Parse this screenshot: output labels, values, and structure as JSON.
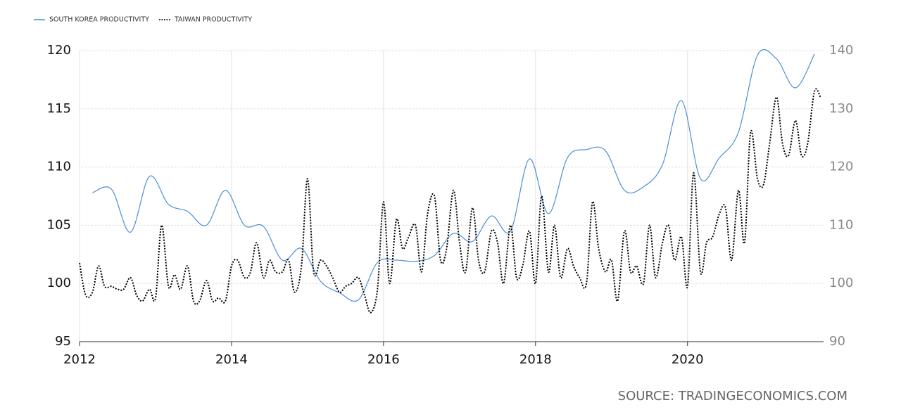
{
  "chart_data": {
    "type": "line",
    "source": "SOURCE: TRADINGECONOMICS.COM",
    "xlim": [
      2012,
      2021.79
    ],
    "xticks": [
      2012,
      2014,
      2016,
      2018,
      2020
    ],
    "ylim": [
      95,
      120
    ],
    "yticks": [
      95,
      100,
      105,
      110,
      115,
      120
    ],
    "y2lim": [
      90,
      140
    ],
    "y2ticks": [
      90,
      100,
      110,
      120,
      130,
      140
    ],
    "grid": true,
    "legend": "top-left",
    "series": [
      {
        "name": "SOUTH KOREA PRODUCTIVITY",
        "color": "#4a8fd6",
        "style": "solid",
        "x": [
          2012.17,
          2012.42,
          2012.67,
          2012.92,
          2013.17,
          2013.42,
          2013.67,
          2013.92,
          2014.17,
          2014.42,
          2014.67,
          2014.92,
          2015.17,
          2015.42,
          2015.67,
          2015.92,
          2016.17,
          2016.42,
          2016.67,
          2016.92,
          2017.17,
          2017.42,
          2017.67,
          2017.92,
          2018.17,
          2018.42,
          2018.67,
          2018.92,
          2019.17,
          2019.42,
          2019.67,
          2019.92,
          2020.17,
          2020.42,
          2020.67,
          2020.92,
          2021.17,
          2021.42,
          2021.67
        ],
        "values": [
          107.8,
          108.1,
          104.4,
          109.2,
          106.8,
          106.2,
          105.0,
          108.0,
          105.0,
          104.9,
          102.0,
          103.0,
          100.2,
          99.2,
          98.6,
          101.8,
          102.0,
          101.9,
          102.4,
          104.3,
          103.6,
          105.8,
          104.5,
          110.7,
          106.0,
          110.8,
          111.5,
          111.4,
          108.0,
          108.3,
          110.2,
          115.7,
          109.0,
          110.8,
          113.0,
          119.6,
          119.3,
          116.8,
          119.7
        ]
      },
      {
        "name": "TAIWAN PRODUCTIVITY",
        "color": "#000000",
        "style": "dotted",
        "axis": "y2",
        "x": [
          2012.0,
          2012.08,
          2012.17,
          2012.25,
          2012.33,
          2012.42,
          2012.5,
          2012.58,
          2012.67,
          2012.75,
          2012.83,
          2012.92,
          2013.0,
          2013.08,
          2013.17,
          2013.25,
          2013.33,
          2013.42,
          2013.5,
          2013.58,
          2013.67,
          2013.75,
          2013.83,
          2013.92,
          2014.0,
          2014.08,
          2014.17,
          2014.25,
          2014.33,
          2014.42,
          2014.5,
          2014.58,
          2014.67,
          2014.75,
          2014.83,
          2014.92,
          2015.0,
          2015.08,
          2015.17,
          2015.25,
          2015.33,
          2015.42,
          2015.5,
          2015.58,
          2015.67,
          2015.75,
          2015.83,
          2015.92,
          2016.0,
          2016.08,
          2016.17,
          2016.25,
          2016.33,
          2016.42,
          2016.5,
          2016.58,
          2016.67,
          2016.75,
          2016.83,
          2016.92,
          2017.0,
          2017.08,
          2017.17,
          2017.25,
          2017.33,
          2017.42,
          2017.5,
          2017.58,
          2017.67,
          2017.75,
          2017.83,
          2017.92,
          2018.0,
          2018.08,
          2018.17,
          2018.25,
          2018.33,
          2018.42,
          2018.5,
          2018.58,
          2018.67,
          2018.75,
          2018.83,
          2018.92,
          2019.0,
          2019.08,
          2019.17,
          2019.25,
          2019.33,
          2019.42,
          2019.5,
          2019.58,
          2019.67,
          2019.75,
          2019.83,
          2019.92,
          2020.0,
          2020.08,
          2020.17,
          2020.25,
          2020.33,
          2020.42,
          2020.5,
          2020.58,
          2020.67,
          2020.75,
          2020.83,
          2020.92,
          2021.0,
          2021.08,
          2021.17,
          2021.25,
          2021.33,
          2021.42,
          2021.5,
          2021.58,
          2021.67,
          2021.75
        ],
        "values": [
          103.5,
          98,
          98.5,
          103,
          99.5,
          99.5,
          99,
          99,
          101,
          98,
          97,
          99,
          97.5,
          110,
          99.5,
          101.5,
          99,
          103,
          97,
          97,
          100.5,
          97,
          97.5,
          97,
          103,
          104,
          101,
          102,
          107,
          101,
          104,
          102,
          102,
          104,
          98.5,
          103,
          118,
          102,
          104,
          103,
          101,
          98.5,
          99.5,
          100,
          101,
          98,
          95,
          99,
          114,
          100,
          111,
          106,
          108,
          110,
          102,
          112,
          115,
          104,
          106,
          116,
          107,
          102,
          113,
          104,
          102,
          109,
          107,
          100,
          110,
          101,
          103,
          109,
          100,
          115,
          102,
          110,
          101,
          106,
          103,
          101,
          100,
          114,
          106,
          102,
          104,
          97,
          109,
          102,
          103,
          100,
          110,
          101,
          107,
          110,
          104,
          108,
          99.5,
          119,
          102,
          107,
          108,
          112,
          113,
          104,
          116,
          107,
          126,
          118,
          117,
          124,
          132,
          124,
          122,
          128,
          122,
          124,
          133,
          132
        ]
      }
    ]
  }
}
